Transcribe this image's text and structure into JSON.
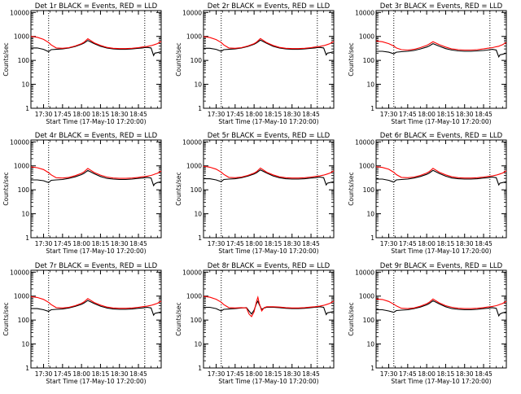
{
  "figure": {
    "background": "#ffffff",
    "events_color": "#000000",
    "lld_color": "#ff0000"
  },
  "chart_data": [
    {
      "type": "line",
      "detector": "Det 1r",
      "title": "Det 1r BLACK = Events, RED = LLD",
      "xlabel": "Start Time (17-May-10 17:20:00)",
      "ylabel": "Counts/sec",
      "x_ticks": [
        "17:30",
        "17:45",
        "18:00",
        "18:15",
        "18:30",
        "18:45"
      ],
      "y_ticks": [
        "1",
        "10",
        "100",
        "1000",
        "10000"
      ],
      "y_scale": "log",
      "ylim": [
        1,
        12000
      ],
      "xlim_minutes_after_start": [
        0,
        103
      ],
      "x_minutes_after_start": [
        0,
        5,
        10,
        14,
        16,
        20,
        25,
        30,
        35,
        40,
        42,
        45,
        50,
        55,
        60,
        65,
        70,
        75,
        80,
        85,
        88,
        90,
        92,
        95,
        97,
        98,
        100,
        103
      ],
      "vlines_minutes_after_start": [
        14,
        90
      ],
      "series": [
        {
          "name": "BLACK = Events",
          "values": [
            330,
            330,
            290,
            230,
            280,
            290,
            300,
            330,
            380,
            470,
            530,
            680,
            500,
            390,
            330,
            300,
            290,
            290,
            300,
            320,
            330,
            340,
            350,
            330,
            160,
            200,
            210,
            230
          ]
        },
        {
          "name": "RED = LLD",
          "values": [
            1000,
            920,
            750,
            560,
            440,
            330,
            320,
            340,
            400,
            500,
            570,
            800,
            540,
            420,
            350,
            320,
            310,
            310,
            320,
            340,
            360,
            370,
            380,
            410,
            440,
            460,
            500,
            620
          ]
        }
      ]
    },
    {
      "type": "line",
      "detector": "Det 2r",
      "title": "Det 2r BLACK = Events, RED = LLD",
      "xlabel": "Start Time (17-May-10 17:20:00)",
      "ylabel": "Counts/sec",
      "x_ticks": [
        "17:30",
        "17:45",
        "18:00",
        "18:15",
        "18:30",
        "18:45"
      ],
      "y_ticks": [
        "1",
        "10",
        "100",
        "1000",
        "10000"
      ],
      "y_scale": "log",
      "ylim": [
        1,
        12000
      ],
      "xlim_minutes_after_start": [
        0,
        103
      ],
      "x_minutes_after_start": [
        0,
        5,
        10,
        14,
        16,
        20,
        25,
        30,
        35,
        40,
        42,
        45,
        50,
        55,
        60,
        65,
        70,
        75,
        80,
        85,
        88,
        90,
        92,
        95,
        97,
        98,
        100,
        103
      ],
      "vlines_minutes_after_start": [
        14,
        90
      ],
      "series": [
        {
          "name": "BLACK = Events",
          "values": [
            320,
            320,
            290,
            240,
            280,
            290,
            300,
            330,
            380,
            470,
            540,
            700,
            510,
            390,
            330,
            300,
            290,
            290,
            300,
            320,
            330,
            340,
            350,
            330,
            170,
            200,
            210,
            230
          ]
        },
        {
          "name": "RED = LLD",
          "values": [
            980,
            900,
            740,
            560,
            440,
            330,
            320,
            340,
            400,
            500,
            580,
            820,
            550,
            420,
            350,
            320,
            310,
            310,
            320,
            340,
            360,
            370,
            380,
            410,
            440,
            460,
            500,
            620
          ]
        }
      ]
    },
    {
      "type": "line",
      "detector": "Det 3r",
      "title": "Det 3r BLACK = Events, RED = LLD",
      "xlabel": "Start Time (17-May-10 17:20:00)",
      "ylabel": "Counts/sec",
      "x_ticks": [
        "17:30",
        "17:45",
        "18:00",
        "18:15",
        "18:30",
        "18:45"
      ],
      "y_ticks": [
        "1",
        "10",
        "100",
        "1000",
        "10000"
      ],
      "y_scale": "log",
      "ylim": [
        1,
        12000
      ],
      "xlim_minutes_after_start": [
        0,
        103
      ],
      "x_minutes_after_start": [
        0,
        5,
        10,
        14,
        16,
        20,
        25,
        30,
        35,
        40,
        42,
        45,
        50,
        55,
        60,
        65,
        70,
        75,
        80,
        85,
        88,
        90,
        92,
        95,
        97,
        98,
        100,
        103
      ],
      "vlines_minutes_after_start": [
        14,
        90
      ],
      "series": [
        {
          "name": "BLACK = Events",
          "values": [
            240,
            240,
            220,
            190,
            220,
            230,
            240,
            260,
            300,
            360,
            400,
            500,
            390,
            310,
            270,
            250,
            240,
            240,
            250,
            260,
            270,
            280,
            290,
            270,
            140,
            170,
            180,
            200
          ]
        },
        {
          "name": "RED = LLD",
          "values": [
            650,
            600,
            500,
            400,
            330,
            280,
            270,
            290,
            340,
            420,
            480,
            600,
            450,
            360,
            300,
            280,
            270,
            270,
            280,
            300,
            320,
            330,
            340,
            370,
            390,
            410,
            450,
            560
          ]
        }
      ]
    },
    {
      "type": "line",
      "detector": "Det 4r",
      "title": "Det 4r BLACK = Events, RED = LLD",
      "xlabel": "Start Time (17-May-10 17:20:00)",
      "ylabel": "Counts/sec",
      "x_ticks": [
        "17:30",
        "17:45",
        "18:00",
        "18:15",
        "18:30",
        "18:45"
      ],
      "y_ticks": [
        "1",
        "10",
        "100",
        "1000",
        "10000"
      ],
      "y_scale": "log",
      "ylim": [
        1,
        12000
      ],
      "xlim_minutes_after_start": [
        0,
        103
      ],
      "x_minutes_after_start": [
        0,
        5,
        10,
        14,
        16,
        20,
        25,
        30,
        35,
        40,
        42,
        45,
        50,
        55,
        60,
        65,
        70,
        75,
        80,
        85,
        88,
        90,
        92,
        95,
        97,
        98,
        100,
        103
      ],
      "vlines_minutes_after_start": [
        14,
        90
      ],
      "series": [
        {
          "name": "BLACK = Events",
          "values": [
            260,
            260,
            240,
            200,
            250,
            260,
            270,
            300,
            350,
            430,
            490,
            640,
            470,
            360,
            300,
            280,
            270,
            270,
            280,
            300,
            310,
            320,
            330,
            310,
            150,
            180,
            200,
            220
          ]
        },
        {
          "name": "RED = LLD",
          "values": [
            900,
            840,
            700,
            520,
            420,
            320,
            310,
            330,
            390,
            490,
            560,
            780,
            530,
            410,
            340,
            310,
            300,
            300,
            310,
            330,
            350,
            360,
            370,
            400,
            430,
            450,
            490,
            610
          ]
        }
      ]
    },
    {
      "type": "line",
      "detector": "Det 5r",
      "title": "Det 5r BLACK = Events, RED = LLD",
      "xlabel": "Start Time (17-May-10 17:20:00)",
      "ylabel": "Counts/sec",
      "x_ticks": [
        "17:30",
        "17:45",
        "18:00",
        "18:15",
        "18:30",
        "18:45"
      ],
      "y_ticks": [
        "1",
        "10",
        "100",
        "1000",
        "10000"
      ],
      "y_scale": "log",
      "ylim": [
        1,
        12000
      ],
      "xlim_minutes_after_start": [
        0,
        103
      ],
      "x_minutes_after_start": [
        0,
        5,
        10,
        14,
        16,
        20,
        25,
        30,
        35,
        40,
        42,
        45,
        50,
        55,
        60,
        65,
        70,
        75,
        80,
        85,
        88,
        90,
        92,
        95,
        97,
        98,
        100,
        103
      ],
      "vlines_minutes_after_start": [
        14,
        90
      ],
      "series": [
        {
          "name": "BLACK = Events",
          "values": [
            290,
            290,
            260,
            220,
            270,
            280,
            290,
            320,
            370,
            460,
            520,
            680,
            500,
            380,
            320,
            290,
            280,
            280,
            290,
            310,
            320,
            330,
            340,
            320,
            160,
            190,
            200,
            220
          ]
        },
        {
          "name": "RED = LLD",
          "values": [
            960,
            880,
            730,
            550,
            440,
            330,
            320,
            340,
            400,
            500,
            570,
            810,
            540,
            420,
            350,
            320,
            310,
            310,
            320,
            340,
            360,
            370,
            380,
            410,
            440,
            460,
            500,
            620
          ]
        }
      ]
    },
    {
      "type": "line",
      "detector": "Det 6r",
      "title": "Det 6r BLACK = Events, RED = LLD",
      "xlabel": "Start Time (17-May-10 17:20:00)",
      "ylabel": "Counts/sec",
      "x_ticks": [
        "17:30",
        "17:45",
        "18:00",
        "18:15",
        "18:30",
        "18:45"
      ],
      "y_ticks": [
        "1",
        "10",
        "100",
        "1000",
        "10000"
      ],
      "y_scale": "log",
      "ylim": [
        1,
        12000
      ],
      "xlim_minutes_after_start": [
        0,
        103
      ],
      "x_minutes_after_start": [
        0,
        5,
        10,
        14,
        16,
        20,
        25,
        30,
        35,
        40,
        42,
        45,
        50,
        55,
        60,
        65,
        70,
        75,
        80,
        85,
        88,
        90,
        92,
        95,
        97,
        98,
        100,
        103
      ],
      "vlines_minutes_after_start": [
        14,
        90
      ],
      "series": [
        {
          "name": "BLACK = Events",
          "values": [
            280,
            280,
            250,
            210,
            260,
            270,
            280,
            310,
            360,
            440,
            500,
            650,
            480,
            370,
            310,
            290,
            280,
            280,
            290,
            310,
            320,
            330,
            340,
            320,
            160,
            190,
            200,
            220
          ]
        },
        {
          "name": "RED = LLD",
          "values": [
            920,
            860,
            720,
            540,
            430,
            330,
            320,
            340,
            400,
            500,
            570,
            790,
            540,
            420,
            350,
            320,
            310,
            310,
            320,
            340,
            360,
            370,
            380,
            410,
            440,
            460,
            500,
            620
          ]
        }
      ]
    },
    {
      "type": "line",
      "detector": "Det 7r",
      "title": "Det 7r BLACK = Events, RED = LLD",
      "xlabel": "Start Time (17-May-10 17:20:00)",
      "ylabel": "Counts/sec",
      "x_ticks": [
        "17:30",
        "17:45",
        "18:00",
        "18:15",
        "18:30",
        "18:45"
      ],
      "y_ticks": [
        "1",
        "10",
        "100",
        "1000",
        "10000"
      ],
      "y_scale": "log",
      "ylim": [
        1,
        12000
      ],
      "xlim_minutes_after_start": [
        0,
        103
      ],
      "x_minutes_after_start": [
        0,
        5,
        10,
        14,
        16,
        20,
        25,
        30,
        35,
        40,
        42,
        45,
        50,
        55,
        60,
        65,
        70,
        75,
        80,
        85,
        88,
        90,
        92,
        95,
        97,
        98,
        100,
        103
      ],
      "vlines_minutes_after_start": [
        14,
        90
      ],
      "series": [
        {
          "name": "BLACK = Events",
          "values": [
            300,
            300,
            270,
            230,
            270,
            280,
            290,
            320,
            370,
            450,
            510,
            660,
            490,
            380,
            320,
            290,
            280,
            280,
            290,
            310,
            320,
            330,
            340,
            320,
            160,
            190,
            200,
            220
          ]
        },
        {
          "name": "RED = LLD",
          "values": [
            950,
            880,
            730,
            550,
            440,
            330,
            320,
            340,
            400,
            500,
            570,
            790,
            540,
            420,
            350,
            320,
            310,
            310,
            320,
            340,
            360,
            370,
            380,
            410,
            440,
            460,
            500,
            620
          ]
        }
      ]
    },
    {
      "type": "line",
      "detector": "Det 8r",
      "title": "Det 8r BLACK = Events, RED = LLD",
      "xlabel": "Start Time (17-May-10 17:20:00)",
      "ylabel": "Counts/sec",
      "x_ticks": [
        "17:30",
        "17:45",
        "18:00",
        "18:15",
        "18:30",
        "18:45"
      ],
      "y_ticks": [
        "1",
        "10",
        "100",
        "1000",
        "10000"
      ],
      "y_scale": "log",
      "ylim": [
        1,
        12000
      ],
      "xlim_minutes_after_start": [
        0,
        103
      ],
      "x_minutes_after_start": [
        0,
        5,
        10,
        14,
        16,
        20,
        25,
        30,
        34,
        36,
        38,
        40,
        42,
        43,
        44,
        46,
        48,
        50,
        55,
        60,
        65,
        70,
        75,
        80,
        85,
        88,
        90,
        92,
        95,
        97,
        98,
        100,
        103
      ],
      "vlines_minutes_after_start": [
        14,
        90
      ],
      "series": [
        {
          "name": "BLACK = Events",
          "values": [
            340,
            340,
            300,
            240,
            280,
            290,
            300,
            320,
            330,
            240,
            180,
            260,
            500,
            620,
            450,
            280,
            320,
            340,
            340,
            330,
            310,
            300,
            300,
            310,
            330,
            340,
            350,
            360,
            340,
            170,
            200,
            210,
            230
          ]
        },
        {
          "name": "RED = LLD",
          "values": [
            980,
            900,
            740,
            560,
            440,
            330,
            320,
            330,
            320,
            180,
            140,
            220,
            620,
            900,
            520,
            240,
            330,
            360,
            360,
            350,
            330,
            320,
            320,
            330,
            350,
            360,
            370,
            380,
            410,
            440,
            460,
            500,
            620
          ]
        }
      ]
    },
    {
      "type": "line",
      "detector": "Det 9r",
      "title": "Det 9r BLACK = Events, RED = LLD",
      "xlabel": "Start Time (17-May-10 17:20:00)",
      "ylabel": "Counts/sec",
      "x_ticks": [
        "17:30",
        "17:45",
        "18:00",
        "18:15",
        "18:30",
        "18:45"
      ],
      "y_ticks": [
        "1",
        "10",
        "100",
        "1000",
        "10000"
      ],
      "y_scale": "log",
      "ylim": [
        1,
        12000
      ],
      "xlim_minutes_after_start": [
        0,
        103
      ],
      "x_minutes_after_start": [
        0,
        5,
        10,
        14,
        16,
        20,
        25,
        30,
        35,
        40,
        42,
        45,
        50,
        55,
        60,
        65,
        70,
        75,
        80,
        85,
        88,
        90,
        92,
        95,
        97,
        98,
        100,
        103
      ],
      "vlines_minutes_after_start": [
        14,
        90
      ],
      "series": [
        {
          "name": "BLACK = Events",
          "values": [
            270,
            270,
            240,
            210,
            250,
            260,
            270,
            300,
            350,
            430,
            490,
            640,
            470,
            360,
            300,
            280,
            270,
            270,
            280,
            300,
            310,
            320,
            330,
            310,
            150,
            180,
            200,
            220
          ]
        },
        {
          "name": "RED = LLD",
          "values": [
            760,
            720,
            600,
            460,
            390,
            310,
            300,
            320,
            380,
            480,
            550,
            760,
            520,
            400,
            340,
            310,
            300,
            300,
            310,
            330,
            350,
            360,
            370,
            400,
            430,
            450,
            490,
            610
          ]
        }
      ]
    }
  ]
}
